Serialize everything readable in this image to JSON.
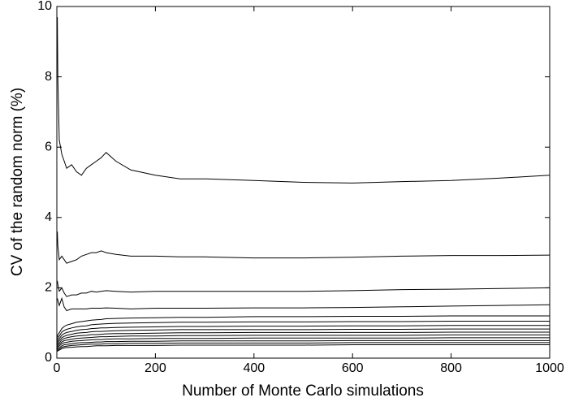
{
  "chart_data": {
    "type": "line",
    "xlabel": "Number of Monte Carlo simulations",
    "ylabel": "CV of the random norm (%)",
    "color": "#000000",
    "xlim": [
      0,
      1000
    ],
    "xticks": [
      0,
      200,
      400,
      600,
      800,
      1000
    ],
    "ylim": [
      0,
      10
    ],
    "yticks": [
      0,
      2,
      4,
      6,
      8,
      10
    ],
    "grid": false,
    "x": [
      1,
      2,
      5,
      10,
      15,
      20,
      30,
      40,
      50,
      60,
      70,
      80,
      90,
      100,
      120,
      150,
      200,
      250,
      300,
      400,
      500,
      600,
      700,
      800,
      900,
      1000
    ],
    "series": [
      {
        "values": [
          9.7,
          8,
          6.2,
          5.8,
          5.6,
          5.4,
          5.5,
          5.3,
          5.2,
          5.4,
          5.5,
          5.6,
          5.7,
          5.85,
          5.6,
          5.35,
          5.2,
          5.1,
          5.1,
          5.05,
          5.0,
          4.98,
          5.02,
          5.05,
          5.12,
          5.2
        ]
      },
      {
        "values": [
          3.6,
          3.2,
          2.8,
          2.9,
          2.8,
          2.7,
          2.75,
          2.8,
          2.9,
          2.95,
          3.0,
          3.0,
          3.05,
          3.0,
          2.95,
          2.9,
          2.9,
          2.88,
          2.88,
          2.85,
          2.85,
          2.87,
          2.9,
          2.92,
          2.92,
          2.93
        ]
      },
      {
        "values": [
          2.2,
          2.1,
          1.9,
          2.0,
          1.85,
          1.75,
          1.8,
          1.8,
          1.85,
          1.85,
          1.9,
          1.88,
          1.9,
          1.92,
          1.9,
          1.88,
          1.9,
          1.9,
          1.9,
          1.9,
          1.9,
          1.92,
          1.95,
          1.96,
          1.98,
          2.0
        ]
      },
      {
        "values": [
          1.7,
          1.65,
          1.5,
          1.7,
          1.45,
          1.35,
          1.4,
          1.4,
          1.4,
          1.4,
          1.42,
          1.42,
          1.42,
          1.43,
          1.42,
          1.4,
          1.42,
          1.42,
          1.42,
          1.43,
          1.43,
          1.44,
          1.46,
          1.48,
          1.5,
          1.52
        ]
      },
      {
        "values": [
          0.6,
          0.66,
          0.72,
          0.84,
          0.9,
          0.94,
          0.98,
          1.02,
          1.04,
          1.06,
          1.08,
          1.09,
          1.1,
          1.12,
          1.13,
          1.14,
          1.15,
          1.16,
          1.16,
          1.18,
          1.18,
          1.19,
          1.19,
          1.2,
          1.2,
          1.2
        ]
      },
      {
        "values": [
          0.53,
          0.58,
          0.63,
          0.74,
          0.79,
          0.82,
          0.86,
          0.89,
          0.91,
          0.92,
          0.95,
          0.96,
          0.97,
          0.98,
          0.99,
          1.0,
          1.01,
          1.02,
          1.02,
          1.03,
          1.03,
          1.04,
          1.04,
          1.05,
          1.05,
          1.05
        ]
      },
      {
        "values": [
          0.47,
          0.51,
          0.56,
          0.65,
          0.7,
          0.73,
          0.76,
          0.79,
          0.81,
          0.82,
          0.84,
          0.85,
          0.86,
          0.86,
          0.87,
          0.88,
          0.89,
          0.9,
          0.9,
          0.91,
          0.91,
          0.92,
          0.92,
          0.93,
          0.93,
          0.93
        ]
      },
      {
        "values": [
          0.42,
          0.46,
          0.5,
          0.58,
          0.62,
          0.65,
          0.68,
          0.71,
          0.72,
          0.73,
          0.75,
          0.76,
          0.76,
          0.77,
          0.78,
          0.79,
          0.8,
          0.81,
          0.81,
          0.81,
          0.81,
          0.82,
          0.82,
          0.83,
          0.83,
          0.83
        ]
      },
      {
        "values": [
          0.37,
          0.41,
          0.44,
          0.52,
          0.56,
          0.58,
          0.61,
          0.63,
          0.64,
          0.65,
          0.67,
          0.67,
          0.68,
          0.69,
          0.7,
          0.7,
          0.71,
          0.72,
          0.72,
          0.73,
          0.73,
          0.73,
          0.73,
          0.74,
          0.74,
          0.74
        ]
      },
      {
        "values": [
          0.33,
          0.36,
          0.4,
          0.46,
          0.5,
          0.51,
          0.54,
          0.56,
          0.57,
          0.58,
          0.59,
          0.6,
          0.61,
          0.61,
          0.62,
          0.63,
          0.63,
          0.64,
          0.64,
          0.65,
          0.65,
          0.65,
          0.65,
          0.66,
          0.66,
          0.66
        ]
      },
      {
        "values": [
          0.29,
          0.32,
          0.35,
          0.41,
          0.44,
          0.45,
          0.48,
          0.49,
          0.5,
          0.51,
          0.52,
          0.53,
          0.53,
          0.54,
          0.55,
          0.55,
          0.56,
          0.56,
          0.56,
          0.57,
          0.57,
          0.57,
          0.57,
          0.58,
          0.58,
          0.58
        ]
      },
      {
        "values": [
          0.25,
          0.28,
          0.3,
          0.35,
          0.38,
          0.39,
          0.41,
          0.43,
          0.44,
          0.44,
          0.45,
          0.46,
          0.46,
          0.47,
          0.47,
          0.48,
          0.48,
          0.49,
          0.49,
          0.49,
          0.49,
          0.5,
          0.5,
          0.5,
          0.5,
          0.5
        ]
      },
      {
        "values": [
          0.22,
          0.24,
          0.26,
          0.31,
          0.33,
          0.34,
          0.36,
          0.37,
          0.38,
          0.39,
          0.4,
          0.4,
          0.4,
          0.41,
          0.41,
          0.42,
          0.42,
          0.43,
          0.43,
          0.43,
          0.43,
          0.44,
          0.44,
          0.44,
          0.44,
          0.44
        ]
      },
      {
        "values": [
          0.19,
          0.21,
          0.23,
          0.27,
          0.29,
          0.3,
          0.31,
          0.32,
          0.33,
          0.33,
          0.34,
          0.35,
          0.35,
          0.35,
          0.36,
          0.36,
          0.36,
          0.37,
          0.37,
          0.37,
          0.37,
          0.38,
          0.38,
          0.38,
          0.38,
          0.38
        ]
      }
    ]
  }
}
